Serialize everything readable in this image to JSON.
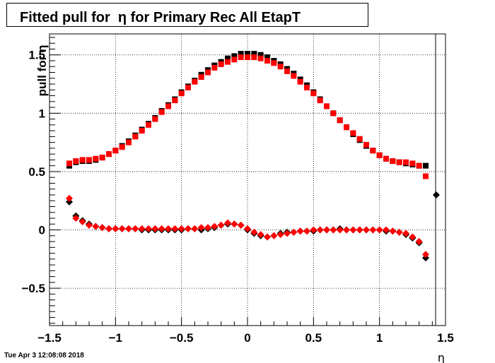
{
  "chart_data": {
    "type": "scatter",
    "title": "Fitted pull for  η for Primary Rec All EtapT",
    "xlabel": "η",
    "ylabel": "pull for  η",
    "xlim": [
      -1.5,
      1.5
    ],
    "ylim": [
      -0.82,
      1.68
    ],
    "x_ticks": [
      -1.5,
      -1,
      -0.5,
      0,
      0.5,
      1,
      1.5
    ],
    "x_tick_labels": [
      "−1.5",
      "−1",
      "−0.5",
      "0",
      "0.5",
      "1",
      "1.5"
    ],
    "y_ticks": [
      -0.5,
      0,
      0.5,
      1,
      1.5
    ],
    "y_tick_labels": [
      "−0.5",
      "0",
      "0.5",
      "1",
      "1.5"
    ],
    "grid": true,
    "series": [
      {
        "color": "#000000",
        "marker": "square",
        "points": [
          [
            -1.35,
            0.55
          ],
          [
            -1.3,
            0.58
          ],
          [
            -1.25,
            0.59
          ],
          [
            -1.2,
            0.59
          ],
          [
            -1.15,
            0.6
          ],
          [
            -1.1,
            0.62
          ],
          [
            -1.05,
            0.65
          ],
          [
            -1.0,
            0.68
          ],
          [
            -0.95,
            0.72
          ],
          [
            -0.9,
            0.76
          ],
          [
            -0.85,
            0.81
          ],
          [
            -0.8,
            0.86
          ],
          [
            -0.75,
            0.91
          ],
          [
            -0.7,
            0.96
          ],
          [
            -0.65,
            1.02
          ],
          [
            -0.6,
            1.07
          ],
          [
            -0.55,
            1.12
          ],
          [
            -0.5,
            1.18
          ],
          [
            -0.45,
            1.23
          ],
          [
            -0.4,
            1.28
          ],
          [
            -0.35,
            1.33
          ],
          [
            -0.3,
            1.37
          ],
          [
            -0.25,
            1.41
          ],
          [
            -0.2,
            1.44
          ],
          [
            -0.15,
            1.47
          ],
          [
            -0.1,
            1.49
          ],
          [
            -0.05,
            1.51
          ],
          [
            0.0,
            1.51
          ],
          [
            0.05,
            1.51
          ],
          [
            0.1,
            1.5
          ],
          [
            0.15,
            1.48
          ],
          [
            0.2,
            1.45
          ],
          [
            0.25,
            1.42
          ],
          [
            0.3,
            1.38
          ],
          [
            0.35,
            1.34
          ],
          [
            0.4,
            1.29
          ],
          [
            0.45,
            1.24
          ],
          [
            0.5,
            1.18
          ],
          [
            0.55,
            1.12
          ],
          [
            0.6,
            1.06
          ],
          [
            0.65,
            1.0
          ],
          [
            0.7,
            0.94
          ],
          [
            0.75,
            0.88
          ],
          [
            0.8,
            0.82
          ],
          [
            0.85,
            0.77
          ],
          [
            0.9,
            0.72
          ],
          [
            0.95,
            0.68
          ],
          [
            1.0,
            0.64
          ],
          [
            1.05,
            0.61
          ],
          [
            1.1,
            0.59
          ],
          [
            1.15,
            0.58
          ],
          [
            1.2,
            0.57
          ],
          [
            1.25,
            0.56
          ],
          [
            1.3,
            0.55
          ],
          [
            1.35,
            0.55
          ]
        ]
      },
      {
        "color": "#ff0000",
        "marker": "square",
        "points": [
          [
            -1.35,
            0.57
          ],
          [
            -1.3,
            0.59
          ],
          [
            -1.25,
            0.6
          ],
          [
            -1.2,
            0.6
          ],
          [
            -1.15,
            0.61
          ],
          [
            -1.1,
            0.62
          ],
          [
            -1.05,
            0.65
          ],
          [
            -1.0,
            0.68
          ],
          [
            -0.95,
            0.71
          ],
          [
            -0.9,
            0.75
          ],
          [
            -0.85,
            0.8
          ],
          [
            -0.8,
            0.85
          ],
          [
            -0.75,
            0.9
          ],
          [
            -0.7,
            0.95
          ],
          [
            -0.65,
            1.01
          ],
          [
            -0.6,
            1.06
          ],
          [
            -0.55,
            1.11
          ],
          [
            -0.5,
            1.17
          ],
          [
            -0.45,
            1.22
          ],
          [
            -0.4,
            1.27
          ],
          [
            -0.35,
            1.31
          ],
          [
            -0.3,
            1.35
          ],
          [
            -0.25,
            1.39
          ],
          [
            -0.2,
            1.42
          ],
          [
            -0.15,
            1.44
          ],
          [
            -0.1,
            1.46
          ],
          [
            -0.05,
            1.48
          ],
          [
            0.0,
            1.48
          ],
          [
            0.05,
            1.48
          ],
          [
            0.1,
            1.47
          ],
          [
            0.15,
            1.45
          ],
          [
            0.2,
            1.43
          ],
          [
            0.25,
            1.4
          ],
          [
            0.3,
            1.36
          ],
          [
            0.35,
            1.32
          ],
          [
            0.4,
            1.27
          ],
          [
            0.45,
            1.22
          ],
          [
            0.5,
            1.17
          ],
          [
            0.55,
            1.11
          ],
          [
            0.6,
            1.06
          ],
          [
            0.65,
            1.0
          ],
          [
            0.7,
            0.94
          ],
          [
            0.75,
            0.88
          ],
          [
            0.8,
            0.83
          ],
          [
            0.85,
            0.78
          ],
          [
            0.9,
            0.73
          ],
          [
            0.95,
            0.68
          ],
          [
            1.0,
            0.64
          ],
          [
            1.05,
            0.61
          ],
          [
            1.1,
            0.59
          ],
          [
            1.15,
            0.58
          ],
          [
            1.2,
            0.58
          ],
          [
            1.25,
            0.57
          ],
          [
            1.3,
            0.55
          ],
          [
            1.35,
            0.46
          ]
        ]
      },
      {
        "color": "#000000",
        "marker": "diamond",
        "points": [
          [
            -1.35,
            0.24
          ],
          [
            -1.3,
            0.12
          ],
          [
            -1.25,
            0.08
          ],
          [
            -1.2,
            0.05
          ],
          [
            -1.15,
            0.03
          ],
          [
            -1.1,
            0.02
          ],
          [
            -1.05,
            0.01
          ],
          [
            -1.0,
            0.01
          ],
          [
            -0.95,
            0.01
          ],
          [
            -0.9,
            0.01
          ],
          [
            -0.85,
            0.01
          ],
          [
            -0.8,
            0.0
          ],
          [
            -0.75,
            0.0
          ],
          [
            -0.7,
            0.0
          ],
          [
            -0.65,
            0.0
          ],
          [
            -0.6,
            0.0
          ],
          [
            -0.55,
            0.0
          ],
          [
            -0.5,
            0.0
          ],
          [
            -0.45,
            0.01
          ],
          [
            -0.4,
            0.01
          ],
          [
            -0.35,
            0.0
          ],
          [
            -0.3,
            0.01
          ],
          [
            -0.25,
            0.02
          ],
          [
            -0.2,
            0.04
          ],
          [
            -0.15,
            0.05
          ],
          [
            -0.1,
            0.05
          ],
          [
            -0.05,
            0.04
          ],
          [
            0.0,
            0.0
          ],
          [
            0.05,
            -0.03
          ],
          [
            0.1,
            -0.05
          ],
          [
            0.15,
            -0.06
          ],
          [
            0.2,
            -0.05
          ],
          [
            0.25,
            -0.03
          ],
          [
            0.3,
            -0.02
          ],
          [
            0.35,
            -0.02
          ],
          [
            0.4,
            -0.01
          ],
          [
            0.45,
            -0.01
          ],
          [
            0.5,
            -0.01
          ],
          [
            0.55,
            0.0
          ],
          [
            0.6,
            0.0
          ],
          [
            0.65,
            0.0
          ],
          [
            0.7,
            0.01
          ],
          [
            0.75,
            0.0
          ],
          [
            0.8,
            0.0
          ],
          [
            0.85,
            0.0
          ],
          [
            0.9,
            0.0
          ],
          [
            0.95,
            0.0
          ],
          [
            1.0,
            0.0
          ],
          [
            1.05,
            -0.01
          ],
          [
            1.1,
            -0.01
          ],
          [
            1.15,
            -0.02
          ],
          [
            1.2,
            -0.04
          ],
          [
            1.25,
            -0.07
          ],
          [
            1.3,
            -0.11
          ],
          [
            1.35,
            -0.24
          ],
          [
            1.43,
            0.3
          ]
        ]
      },
      {
        "color": "#ff0000",
        "marker": "diamond",
        "points": [
          [
            -1.35,
            0.27
          ],
          [
            -1.3,
            0.1
          ],
          [
            -1.25,
            0.07
          ],
          [
            -1.2,
            0.04
          ],
          [
            -1.15,
            0.03
          ],
          [
            -1.1,
            0.02
          ],
          [
            -1.05,
            0.01
          ],
          [
            -1.0,
            0.01
          ],
          [
            -0.95,
            0.01
          ],
          [
            -0.9,
            0.01
          ],
          [
            -0.85,
            0.01
          ],
          [
            -0.8,
            0.01
          ],
          [
            -0.75,
            0.01
          ],
          [
            -0.7,
            0.01
          ],
          [
            -0.65,
            0.01
          ],
          [
            -0.6,
            0.01
          ],
          [
            -0.55,
            0.01
          ],
          [
            -0.5,
            0.01
          ],
          [
            -0.45,
            0.01
          ],
          [
            -0.4,
            0.01
          ],
          [
            -0.35,
            0.02
          ],
          [
            -0.3,
            0.02
          ],
          [
            -0.25,
            0.03
          ],
          [
            -0.2,
            0.04
          ],
          [
            -0.15,
            0.06
          ],
          [
            -0.1,
            0.05
          ],
          [
            -0.05,
            0.04
          ],
          [
            0.0,
            0.01
          ],
          [
            0.05,
            -0.02
          ],
          [
            0.1,
            -0.04
          ],
          [
            0.15,
            -0.06
          ],
          [
            0.2,
            -0.05
          ],
          [
            0.25,
            -0.04
          ],
          [
            0.3,
            -0.03
          ],
          [
            0.35,
            -0.02
          ],
          [
            0.4,
            -0.01
          ],
          [
            0.45,
            -0.01
          ],
          [
            0.5,
            0.0
          ],
          [
            0.55,
            0.0
          ],
          [
            0.6,
            0.0
          ],
          [
            0.65,
            0.0
          ],
          [
            0.7,
            0.0
          ],
          [
            0.75,
            0.0
          ],
          [
            0.8,
            0.0
          ],
          [
            0.85,
            0.0
          ],
          [
            0.9,
            0.0
          ],
          [
            0.95,
            0.0
          ],
          [
            1.0,
            0.0
          ],
          [
            1.05,
            0.0
          ],
          [
            1.1,
            -0.01
          ],
          [
            1.15,
            -0.02
          ],
          [
            1.2,
            -0.03
          ],
          [
            1.25,
            -0.06
          ],
          [
            1.3,
            -0.1
          ],
          [
            1.35,
            -0.21
          ]
        ]
      }
    ]
  },
  "footer": {
    "timestamp": "Tue Apr  3 12:08:08 2018"
  }
}
